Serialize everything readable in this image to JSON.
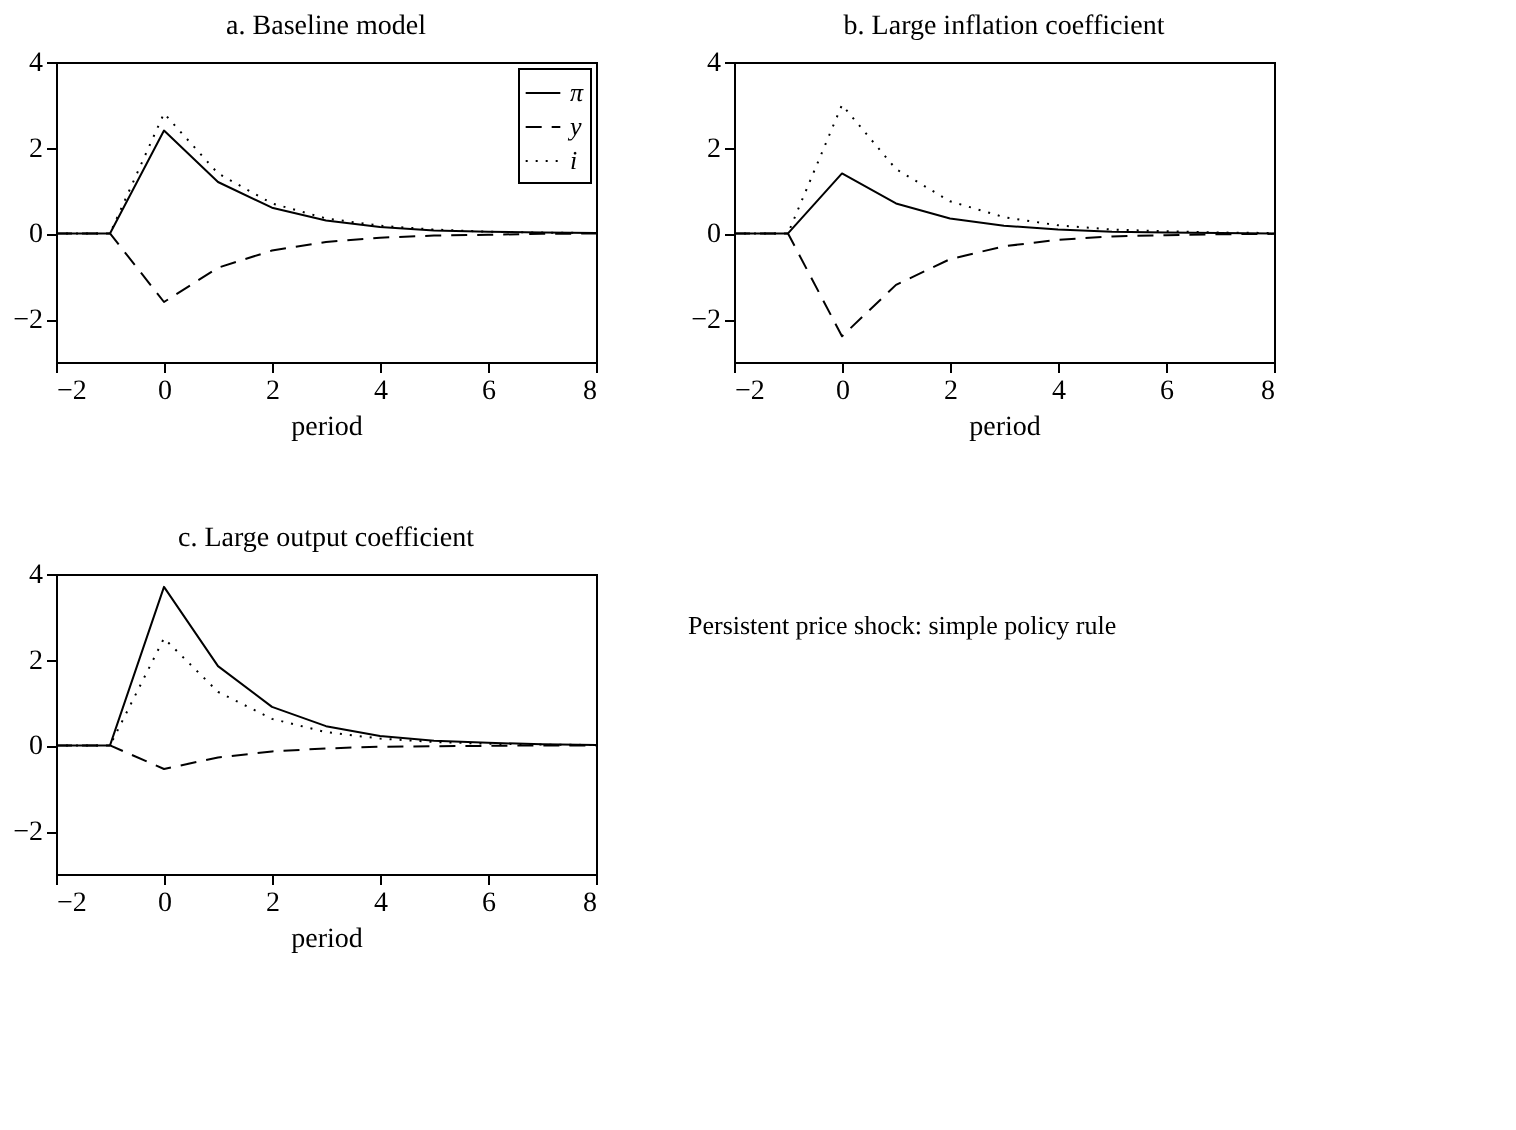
{
  "chart_data": [
    {
      "type": "line",
      "title": "a. Baseline model",
      "xlabel": "period",
      "x": [
        -2,
        -1,
        0,
        1,
        2,
        3,
        4,
        5,
        6,
        7,
        8
      ],
      "xlim": [
        -2,
        8
      ],
      "xticks": [
        -2,
        0,
        2,
        4,
        6,
        8
      ],
      "ylim": [
        -3,
        4
      ],
      "yticks": [
        -2,
        0,
        2,
        4
      ],
      "grid": false,
      "legend": "top right",
      "marker": "none",
      "series": [
        {
          "name": "π",
          "color": "#000000",
          "line_style": "solid",
          "values": [
            0,
            0,
            2.4,
            1.2,
            0.6,
            0.3,
            0.15,
            0.07,
            0.04,
            0.02,
            0.01
          ]
        },
        {
          "name": "y",
          "color": "#000000",
          "line_style": "dashed",
          "values": [
            0,
            0,
            -1.6,
            -0.8,
            -0.4,
            -0.2,
            -0.1,
            -0.05,
            -0.03,
            -0.01,
            0
          ]
        },
        {
          "name": "i",
          "color": "#000000",
          "line_style": "dotted",
          "values": [
            0,
            0,
            2.8,
            1.4,
            0.7,
            0.35,
            0.18,
            0.09,
            0.04,
            0.02,
            0.01
          ]
        }
      ]
    },
    {
      "type": "line",
      "title": "b. Large inflation coefficient",
      "xlabel": "period",
      "x": [
        -2,
        -1,
        0,
        1,
        2,
        3,
        4,
        5,
        6,
        7,
        8
      ],
      "xlim": [
        -2,
        8
      ],
      "xticks": [
        -2,
        0,
        2,
        4,
        6,
        8
      ],
      "ylim": [
        -3,
        4
      ],
      "yticks": [
        -2,
        0,
        2,
        4
      ],
      "grid": false,
      "legend": false,
      "marker": "none",
      "series": [
        {
          "color": "#000000",
          "line_style": "solid",
          "values": [
            0,
            0,
            1.4,
            0.7,
            0.35,
            0.18,
            0.09,
            0.04,
            0.02,
            0.01,
            0
          ]
        },
        {
          "color": "#000000",
          "line_style": "dashed",
          "values": [
            0,
            0,
            -2.4,
            -1.2,
            -0.6,
            -0.3,
            -0.15,
            -0.07,
            -0.04,
            -0.02,
            -0.01
          ]
        },
        {
          "color": "#000000",
          "line_style": "dotted",
          "values": [
            0,
            0,
            3.0,
            1.5,
            0.75,
            0.38,
            0.19,
            0.09,
            0.05,
            0.02,
            0.01
          ]
        }
      ]
    },
    {
      "type": "line",
      "title": "c. Large output coefficient",
      "xlabel": "period",
      "x": [
        -2,
        -1,
        0,
        1,
        2,
        3,
        4,
        5,
        6,
        7,
        8
      ],
      "xlim": [
        -2,
        8
      ],
      "xticks": [
        -2,
        0,
        2,
        4,
        6,
        8
      ],
      "ylim": [
        -3,
        4
      ],
      "yticks": [
        -2,
        0,
        2,
        4
      ],
      "grid": false,
      "legend": false,
      "marker": "none",
      "series": [
        {
          "color": "#000000",
          "line_style": "solid",
          "values": [
            0,
            0,
            3.7,
            1.85,
            0.9,
            0.45,
            0.22,
            0.11,
            0.06,
            0.03,
            0.01
          ]
        },
        {
          "color": "#000000",
          "line_style": "dashed",
          "values": [
            0,
            0,
            -0.55,
            -0.28,
            -0.14,
            -0.07,
            -0.03,
            -0.02,
            -0.01,
            0,
            0
          ]
        },
        {
          "color": "#000000",
          "line_style": "dotted",
          "values": [
            0,
            0,
            2.5,
            1.25,
            0.62,
            0.31,
            0.16,
            0.08,
            0.04,
            0.02,
            0.01
          ]
        }
      ]
    },
    {
      "type": "other",
      "annotations": [
        "Persistent price shock: simple policy rule"
      ]
    }
  ]
}
